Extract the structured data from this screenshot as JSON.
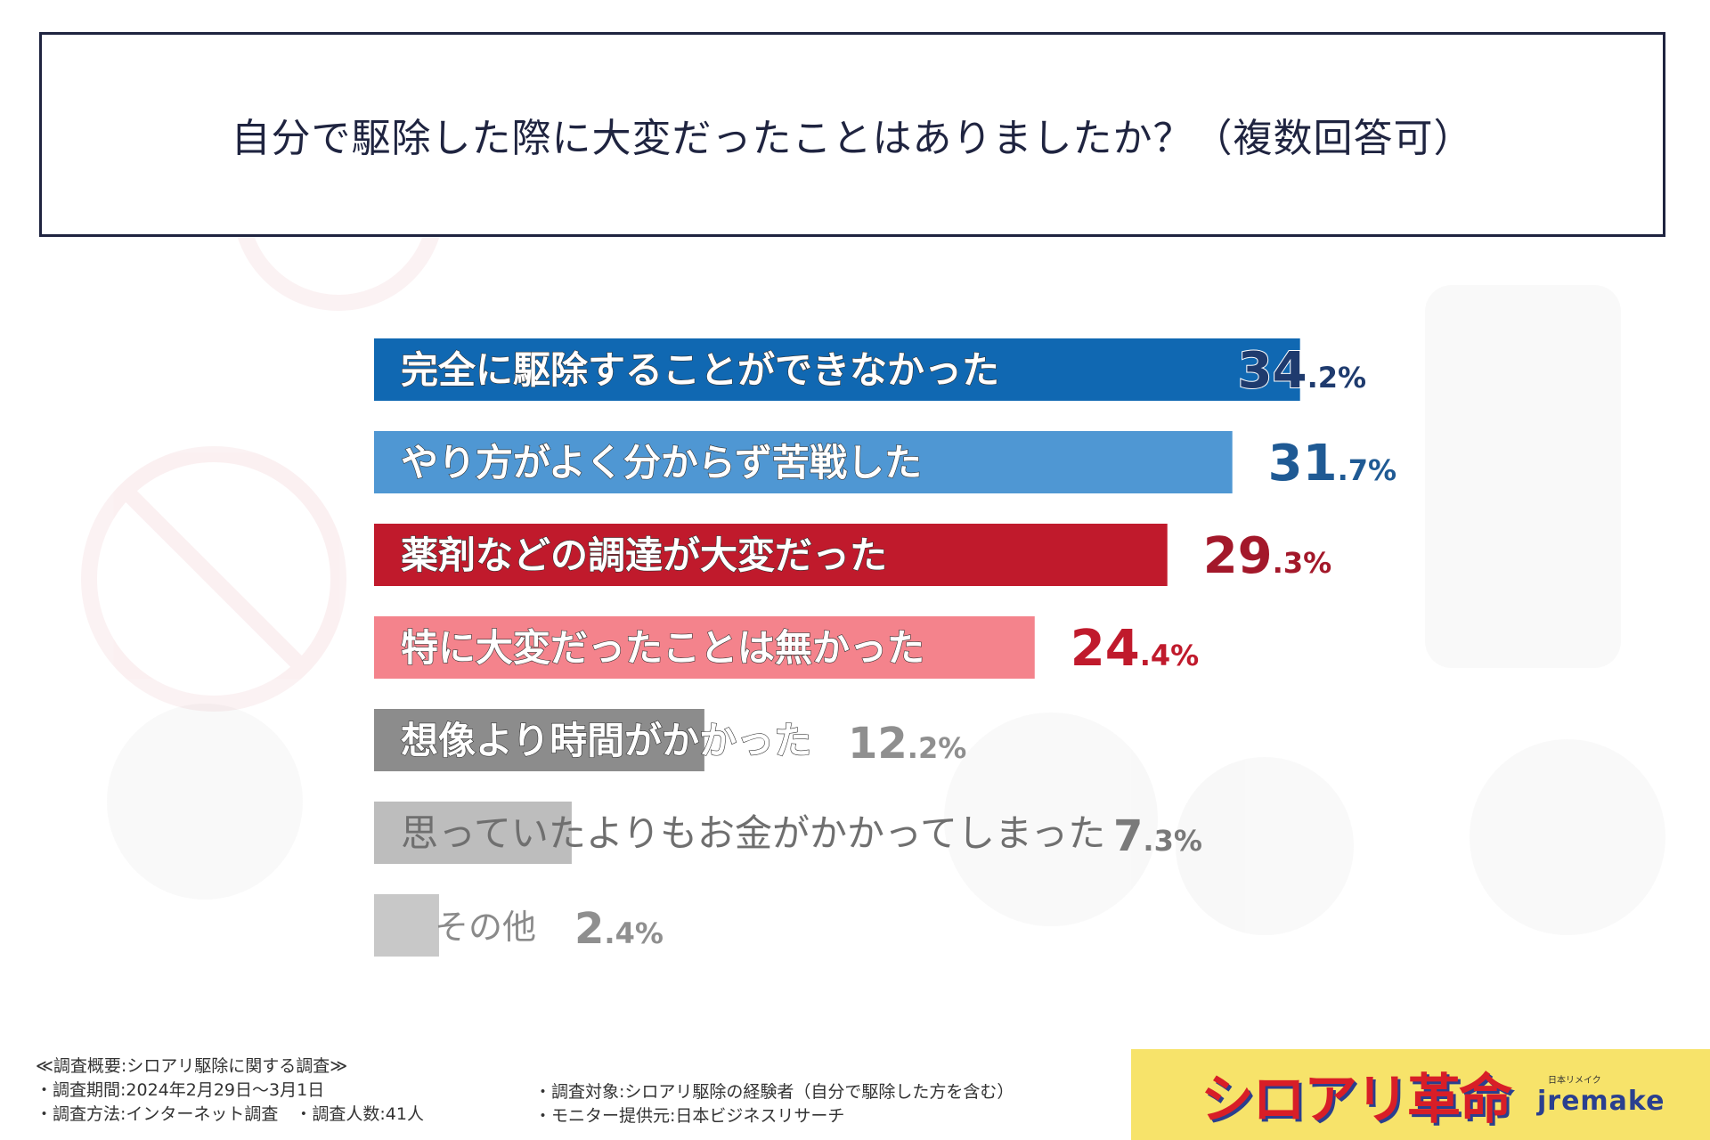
{
  "title": "自分で駆除した際に大変だったことはありましたか？（複数回答可）",
  "chart_data": {
    "type": "bar",
    "orientation": "horizontal",
    "categories": [
      "完全に駆除することができなかった",
      "やり方がよく分からず苦戦した",
      "薬剤などの調達が大変だった",
      "特に大変だったことは無かった",
      "想像より時間がかかった",
      "思っていたよりもお金がかかってしまった",
      "その他"
    ],
    "values": [
      34.2,
      31.7,
      29.3,
      24.4,
      12.2,
      7.3,
      2.4
    ],
    "value_labels": [
      {
        "int": "34",
        "dec": ".2%"
      },
      {
        "int": "31",
        "dec": ".7%"
      },
      {
        "int": "29",
        "dec": ".3%"
      },
      {
        "int": "24",
        "dec": ".4%"
      },
      {
        "int": "12",
        "dec": ".2%"
      },
      {
        "int": "7",
        "dec": ".3%"
      },
      {
        "int": "2",
        "dec": ".4%"
      }
    ],
    "bar_colors": [
      "#1068b2",
      "#4f97d3",
      "#c01a2c",
      "#f4838c",
      "#8c8c8c",
      "#bdbdbd",
      "#c8c8c8"
    ],
    "value_colors": [
      "#1f3b6e",
      "#1f5a94",
      "#a3182a",
      "#c01a2c",
      "#8f8f8f",
      "#7a7a7a",
      "#8f8f8f"
    ],
    "label_colors": [
      "#ffffff",
      "#ffffff",
      "#ffffff",
      "#ffffff",
      "#ffffff",
      "#6f6f6f",
      "#8a8a8a"
    ]
  },
  "footer": {
    "summary": "≪調査概要:シロアリ駆除に関する調査≫",
    "period": "・調査期間:2024年2月29日〜3月1日",
    "method": "・調査方法:インターネット調査　・調査人数:41人",
    "target": "・調査対象:シロアリ駆除の経験者（自分で駆除した方を含む）",
    "monitor": "・モニター提供元:日本ビジネスリサーチ"
  },
  "logo": {
    "main": "シロアリ革命",
    "kana": "日本リメイク",
    "brand": "jremake"
  }
}
